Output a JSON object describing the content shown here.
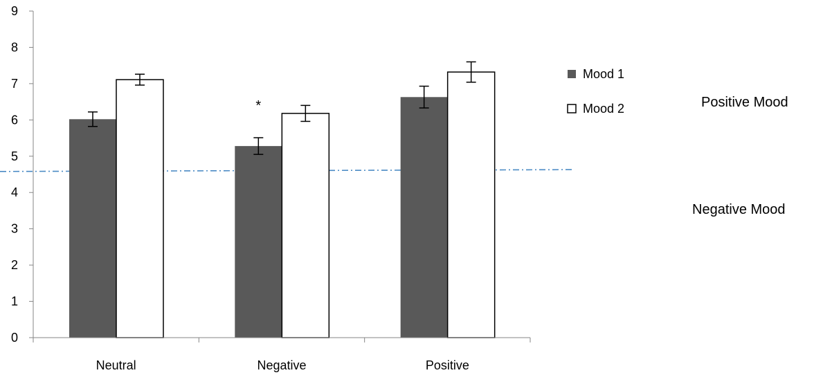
{
  "chart_data": {
    "type": "bar",
    "title": "",
    "xlabel": "",
    "ylabel": "",
    "categories": [
      "Neutral",
      "Negative",
      "Positive"
    ],
    "ylim": [
      0,
      9
    ],
    "yticks": [
      0,
      1,
      2,
      3,
      4,
      5,
      6,
      7,
      8,
      9
    ],
    "series": [
      {
        "name": "Mood 1",
        "values": [
          6.02,
          5.28,
          6.63
        ],
        "errors": [
          0.2,
          0.23,
          0.3
        ],
        "color": "#595959"
      },
      {
        "name": "Mood 2",
        "values": [
          7.11,
          6.18,
          7.32
        ],
        "errors": [
          0.15,
          0.22,
          0.28
        ],
        "color": "#ffffff"
      }
    ],
    "reference_line": {
      "start": 4.58,
      "end": 4.63,
      "color": "#4a8ac4",
      "style": "dash-dot"
    },
    "annotations": [
      {
        "text": "*",
        "category": "Negative",
        "series": "Mood 1"
      }
    ],
    "legend": {
      "position": "right"
    },
    "side_labels": {
      "upper": "Positive Mood",
      "lower": "Negative Mood"
    },
    "grid": false
  }
}
